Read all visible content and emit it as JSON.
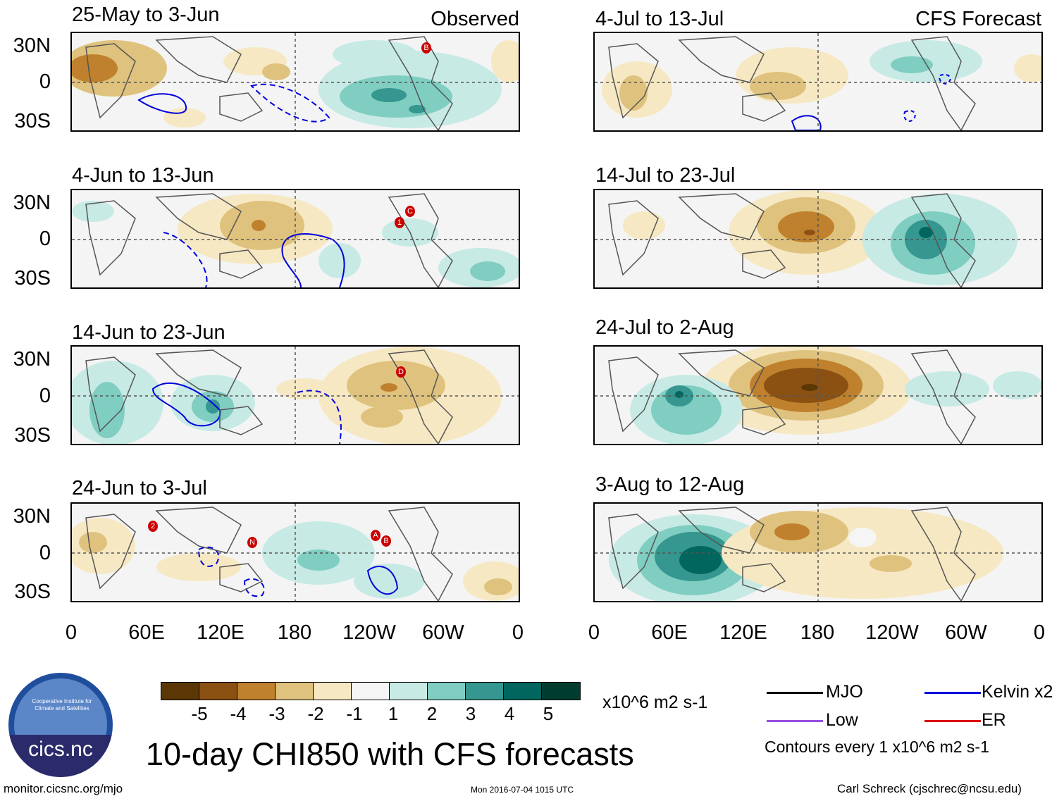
{
  "header": {
    "observed_label": "Observed",
    "forecast_label": "CFS Forecast"
  },
  "lat_labels": [
    "30N",
    "0",
    "30S"
  ],
  "lon_labels": [
    "0",
    "60E",
    "120E",
    "180",
    "120W",
    "60W",
    "0"
  ],
  "observed_panels": [
    {
      "title": "25-May to 3-Jun"
    },
    {
      "title": "4-Jun to 13-Jun"
    },
    {
      "title": "14-Jun to 23-Jun"
    },
    {
      "title": "24-Jun to 3-Jul"
    }
  ],
  "forecast_panels": [
    {
      "title": "4-Jul to 13-Jul"
    },
    {
      "title": "14-Jul to 23-Jul"
    },
    {
      "title": "24-Jul to 2-Aug"
    },
    {
      "title": "3-Aug to 12-Aug"
    }
  ],
  "storm_markers": {
    "p0": [
      "B"
    ],
    "p1": [
      "1",
      "C"
    ],
    "p2": [
      "D"
    ],
    "p3": [
      "2",
      "N",
      "A",
      "B"
    ]
  },
  "colorbar": {
    "colors": [
      "#5a3705",
      "#8b5113",
      "#bf812d",
      "#dfc27d",
      "#f6e8c3",
      "#f5f5f5",
      "#c7eae5",
      "#80cdc1",
      "#35978f",
      "#01665e",
      "#003c30"
    ],
    "labels": [
      "-5",
      "-4",
      "-3",
      "-2",
      "-1",
      "1",
      "2",
      "3",
      "4",
      "5"
    ],
    "units": "x10^6 m2 s-1"
  },
  "legend": {
    "items": [
      {
        "label": "MJO",
        "color": "#000000"
      },
      {
        "label": "Low",
        "color": "#9a4fe0"
      },
      {
        "label": "Kelvin x2",
        "color": "#0000dd"
      },
      {
        "label": "ER",
        "color": "#dd0000"
      }
    ],
    "contour_note": "Contours every 1 x10^6 m2 s-1"
  },
  "logo_text": "cics.nc",
  "logo_ring_text": "Cooperative Institute for Climate and Satellites",
  "main_title": "10-day CHI850 with CFS forecasts",
  "footer": {
    "url": "monitor.cicsnc.org/mjo",
    "timestamp": "Mon 2016-07-04 1015 UTC",
    "author": "Carl Schreck (cjschrec@ncsu.edu)"
  }
}
